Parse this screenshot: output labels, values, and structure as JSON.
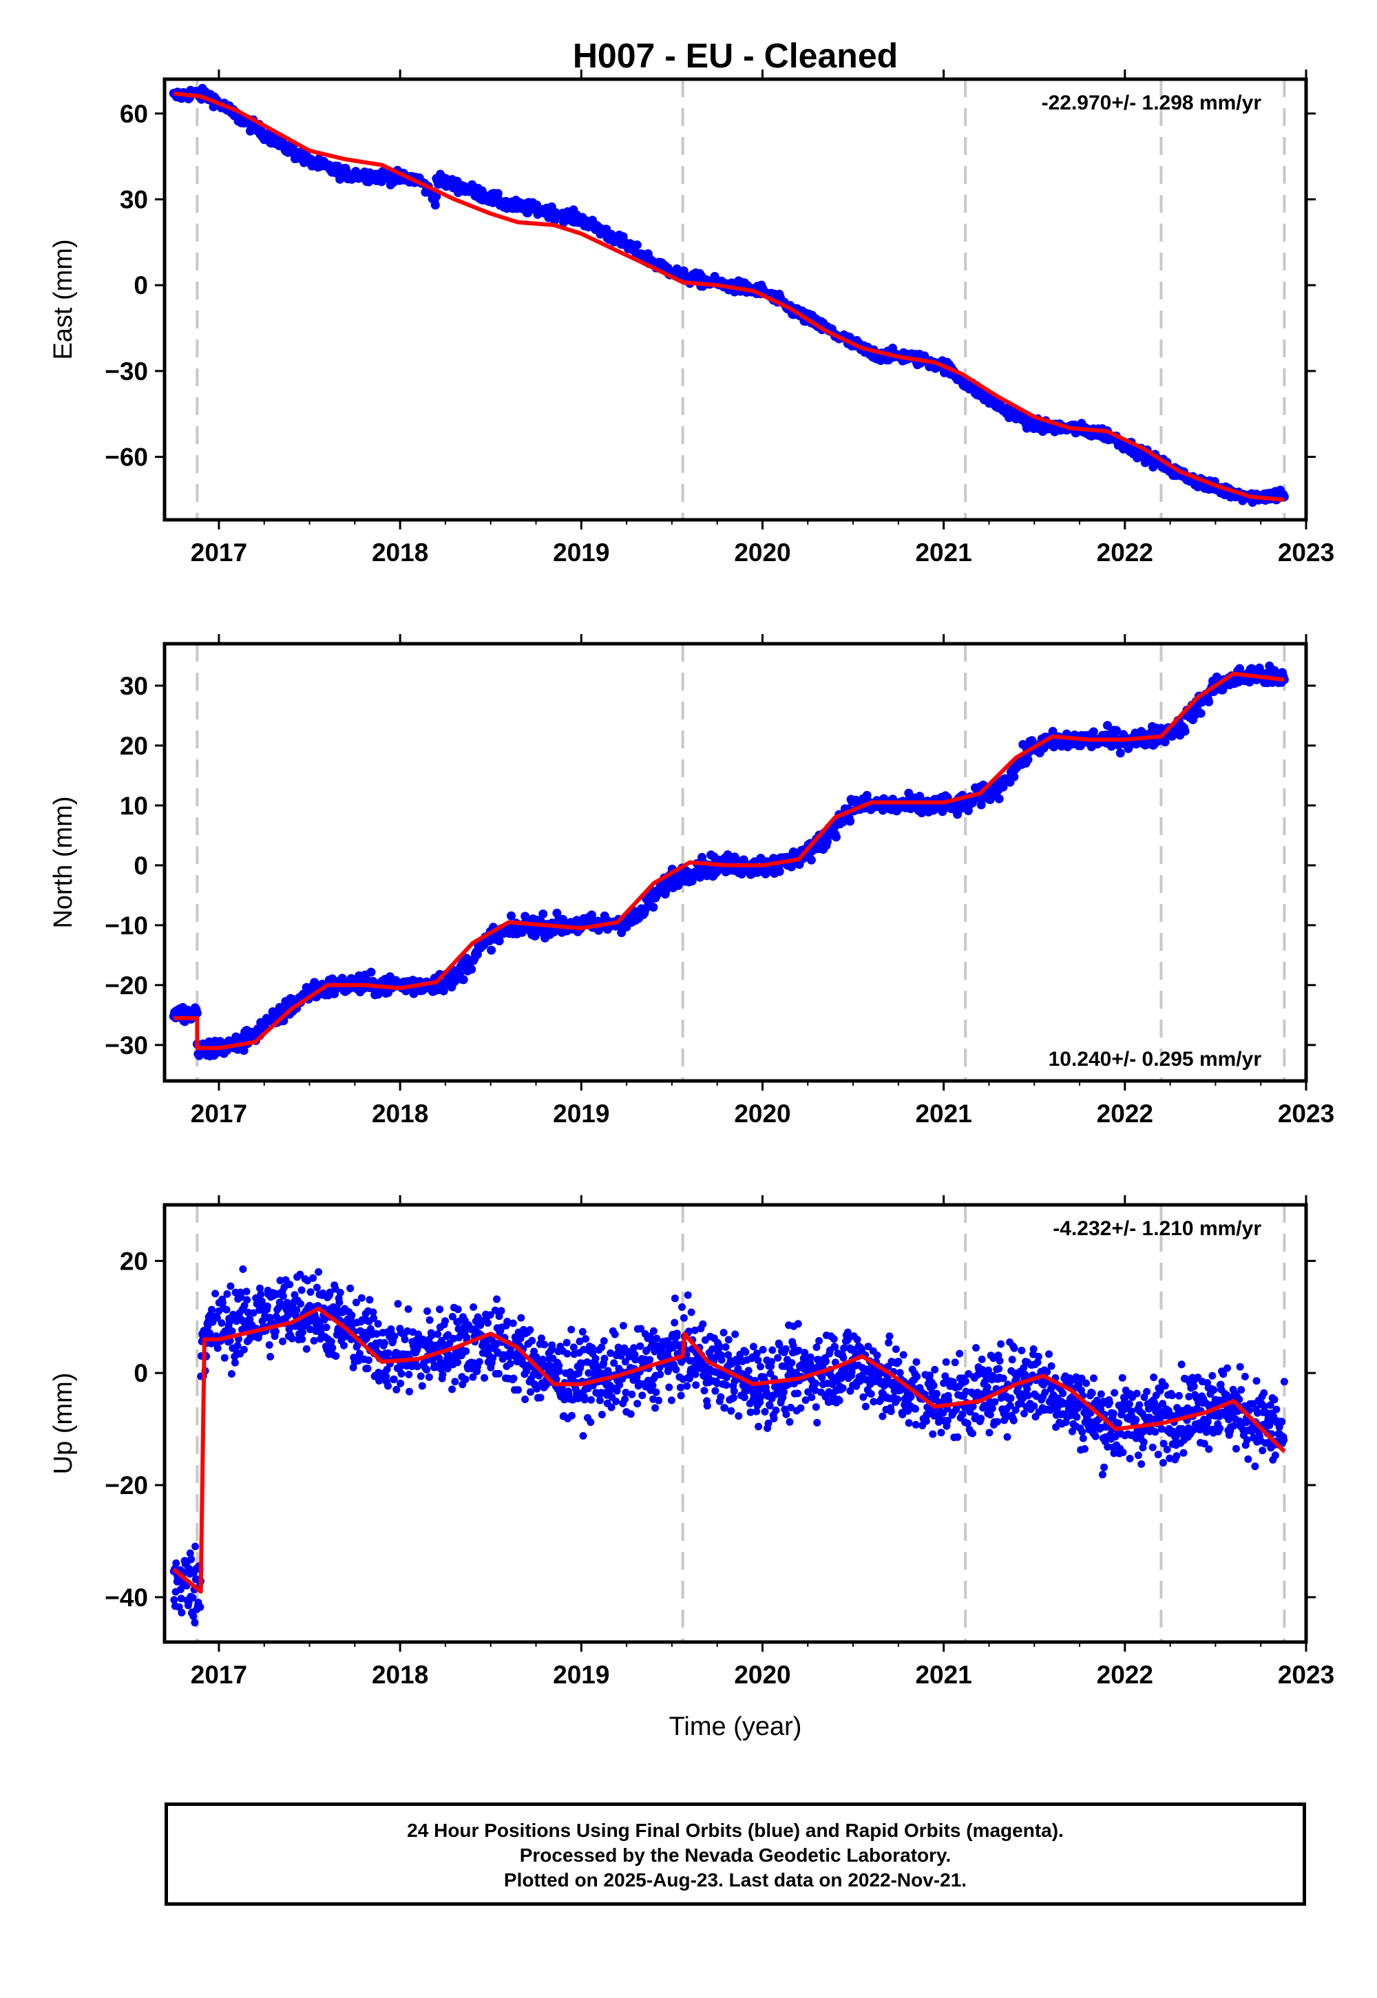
{
  "colors": {
    "points": "#0000ff",
    "fit": "#ff0000",
    "event_lines": "#c8c8c8",
    "frame": "#000000"
  },
  "chart_data": [
    {
      "type": "scatter",
      "title": "H007  - EU - Cleaned",
      "xlabel": "",
      "ylabel": "East (mm)",
      "xlim": [
        2016.7,
        2023.0
      ],
      "ylim": [
        -82,
        72
      ],
      "xticks": [
        "2017",
        "2018",
        "2019",
        "2020",
        "2021",
        "2022",
        "2023"
      ],
      "yticks": [
        "60",
        "30",
        "0",
        "-30",
        "-60"
      ],
      "event_lines_x": [
        2016.88,
        2019.56,
        2021.12,
        2022.2,
        2022.88
      ],
      "rate_label": "-22.970+/- 1.298 mm/yr",
      "rate_position": "top-right",
      "series": [
        {
          "type": "scatter",
          "scatter_noise": 1.5,
          "segments": [
            {
              "x": [
                2016.75,
                2016.85,
                2016.95,
                2017.1,
                2017.3,
                2017.5,
                2017.7,
                2017.9,
                2018.1,
                2018.2
              ],
              "y": [
                66,
                67,
                66,
                59,
                51,
                43,
                39,
                38,
                37,
                30
              ]
            },
            {
              "x": [
                2018.2,
                2018.4,
                2018.6,
                2018.8,
                2019.0,
                2019.2,
                2019.4,
                2019.56,
                2019.8,
                2020.0,
                2020.2,
                2020.4,
                2020.6,
                2020.8,
                2021.0,
                2021.12,
                2021.3,
                2021.5,
                2021.7,
                2021.9,
                2022.1,
                2022.3,
                2022.5,
                2022.7,
                2022.88
              ],
              "y": [
                37,
                33,
                28,
                26,
                23,
                16,
                8,
                3,
                0,
                -2,
                -10,
                -17,
                -24,
                -25,
                -28,
                -34,
                -42,
                -49,
                -50,
                -52,
                -59,
                -66,
                -71,
                -74,
                -73
              ]
            }
          ]
        },
        {
          "type": "line",
          "x": [
            2016.75,
            2016.9,
            2017.1,
            2017.3,
            2017.5,
            2017.7,
            2017.9,
            2018.1,
            2018.3,
            2018.5,
            2018.65,
            2018.85,
            2019.0,
            2019.2,
            2019.4,
            2019.56,
            2019.75,
            2019.95,
            2020.15,
            2020.35,
            2020.55,
            2020.75,
            2020.95,
            2021.1,
            2021.3,
            2021.5,
            2021.7,
            2021.9,
            2022.1,
            2022.3,
            2022.5,
            2022.7,
            2022.88
          ],
          "y": [
            67,
            66,
            61,
            54,
            47,
            44,
            42,
            36,
            30,
            25,
            22,
            21,
            18,
            12,
            6,
            1,
            0,
            -2,
            -8,
            -16,
            -22,
            -25,
            -27,
            -31,
            -39,
            -46,
            -50,
            -51,
            -57,
            -65,
            -70,
            -74,
            -75
          ]
        }
      ]
    },
    {
      "type": "scatter",
      "xlabel": "",
      "ylabel": "North (mm)",
      "xlim": [
        2016.7,
        2023.0
      ],
      "ylim": [
        -36,
        37
      ],
      "xticks": [
        "2017",
        "2018",
        "2019",
        "2020",
        "2021",
        "2022",
        "2023"
      ],
      "yticks": [
        "30",
        "20",
        "10",
        "0",
        "-10",
        "-20",
        "-30"
      ],
      "event_lines_x": [
        2016.88,
        2019.56,
        2021.12,
        2022.2,
        2022.88
      ],
      "rate_label": "10.240+/- 0.295 mm/yr",
      "rate_position": "bottom-right",
      "series": [
        {
          "type": "scatter",
          "scatter_noise": 1.2,
          "segments": [
            {
              "x": [
                2016.75,
                2016.88
              ],
              "y": [
                -25,
                -25
              ]
            },
            {
              "x": [
                2016.88,
                2017.1,
                2017.3,
                2017.5,
                2017.7,
                2017.9,
                2018.1,
                2018.3,
                2018.5,
                2018.7,
                2018.9,
                2019.1,
                2019.3,
                2019.5,
                2019.7,
                2019.9,
                2020.1,
                2020.3,
                2020.5,
                2020.7,
                2020.9,
                2021.1,
                2021.3,
                2021.5,
                2021.7,
                2021.9,
                2022.1,
                2022.3,
                2022.5,
                2022.7,
                2022.88
              ],
              "y": [
                -31,
                -30,
                -26,
                -21,
                -20,
                -20,
                -20,
                -19,
                -12,
                -10,
                -10,
                -10,
                -9,
                -2,
                0,
                0,
                0,
                3,
                10,
                10,
                10,
                10,
                13,
                20,
                21,
                21,
                21,
                23,
                30,
                32,
                31
              ]
            }
          ]
        },
        {
          "type": "line",
          "x": [
            2016.75,
            2016.88,
            2016.88,
            2017.0,
            2017.2,
            2017.4,
            2017.6,
            2017.8,
            2018.0,
            2018.2,
            2018.4,
            2018.6,
            2018.8,
            2019.0,
            2019.2,
            2019.4,
            2019.6,
            2019.8,
            2020.0,
            2020.2,
            2020.4,
            2020.6,
            2020.8,
            2021.0,
            2021.2,
            2021.4,
            2021.6,
            2021.8,
            2022.0,
            2022.2,
            2022.4,
            2022.6,
            2022.88
          ],
          "y": [
            -25.5,
            -25.5,
            -30.5,
            -30.5,
            -29.5,
            -24,
            -20,
            -20,
            -20.5,
            -19.5,
            -13,
            -9.5,
            -10,
            -10.5,
            -9.5,
            -3,
            0.5,
            0,
            0,
            1,
            8,
            10.5,
            10.5,
            10.5,
            12,
            18,
            21.5,
            21,
            21,
            21.5,
            28,
            32,
            31
          ]
        }
      ]
    },
    {
      "type": "scatter",
      "xlabel": "Time (year)",
      "ylabel": "Up (mm)",
      "xlim": [
        2016.7,
        2023.0
      ],
      "ylim": [
        -48,
        30
      ],
      "xticks": [
        "2017",
        "2018",
        "2019",
        "2020",
        "2021",
        "2022",
        "2023"
      ],
      "yticks": [
        "20",
        "0",
        "-20",
        "-40"
      ],
      "event_lines_x": [
        2016.88,
        2019.56,
        2021.12,
        2022.2,
        2022.88
      ],
      "rate_label": "-4.232+/- 1.210 mm/yr",
      "rate_position": "top-right",
      "series": [
        {
          "type": "scatter",
          "scatter_noise": 5,
          "segments": [
            {
              "x": [
                2016.75,
                2016.9
              ],
              "y": [
                -37,
                -38
              ]
            },
            {
              "x": [
                2016.9,
                2017.0,
                2017.5,
                2017.8,
                2018.0,
                2018.5,
                2018.9,
                2019.3,
                2019.56,
                2019.8,
                2020.0,
                2020.5,
                2020.9,
                2021.2,
                2021.5,
                2021.9,
                2022.2,
                2022.5,
                2022.88
              ],
              "y": [
                6,
                8,
                12,
                6,
                3,
                6,
                -1,
                0,
                4,
                0,
                -2,
                2,
                -5,
                -4,
                -1,
                -9,
                -8,
                -5,
                -11
              ]
            }
          ]
        },
        {
          "type": "line",
          "x": [
            2016.75,
            2016.9,
            2016.92,
            2017.0,
            2017.2,
            2017.4,
            2017.55,
            2017.7,
            2017.9,
            2018.1,
            2018.3,
            2018.5,
            2018.65,
            2018.85,
            2019.0,
            2019.2,
            2019.4,
            2019.56,
            2019.57,
            2019.7,
            2019.95,
            2020.2,
            2020.4,
            2020.55,
            2020.7,
            2020.95,
            2021.2,
            2021.4,
            2021.55,
            2021.7,
            2021.95,
            2022.2,
            2022.45,
            2022.6,
            2022.88
          ],
          "y": [
            -35,
            -39,
            6,
            6,
            7.5,
            9,
            11.5,
            8,
            2,
            2.5,
            4.5,
            7,
            4.5,
            -2,
            -2,
            -0.5,
            1.5,
            3,
            7,
            2,
            -2,
            -1,
            1,
            3,
            0,
            -6,
            -5,
            -2,
            -0.5,
            -3,
            -10,
            -9,
            -7,
            -5,
            -14
          ]
        }
      ]
    }
  ],
  "footer": {
    "line1": "24 Hour Positions Using Final Orbits (blue) and Rapid Orbits (magenta).",
    "line2": "Processed by the Nevada Geodetic Laboratory.",
    "line3": "Plotted on 2025-Aug-23. Last data on 2022-Nov-21."
  }
}
